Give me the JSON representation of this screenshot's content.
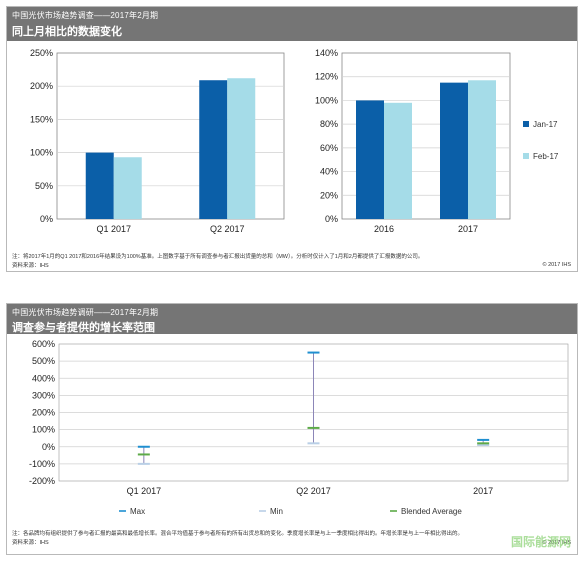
{
  "panel1": {
    "supertitle": "中国光伏市场趋势调查——2017年2月期",
    "title": "同上月相比的数据变化",
    "footnote_line1": "注：将2017年1月的Q1 2017和2016年结果设为100%基准。上图数字基于所有调查参与者汇报出货量的总和（MW）。分析时仅计入了1月和2月都提供了汇报数据的公司。",
    "footnote_line2": "资料来源：IHS",
    "copyright": "© 2017 IHS"
  },
  "panel2": {
    "supertitle": "中国光伏市场趋势调研——2017年2月期",
    "title": "调查参与者提供的增长率范围",
    "footnote_line1": "注：各品牌均有组织提供了参与者汇报的最高和最低增长率。混合平均值基于参与者所有的所有出货总和的变化。季度增长率是与上一季度相比得出的。年增长率是与上一年相比得出的。",
    "footnote_line2": "资料来源：IHS",
    "copyright": "© 2017 IHS"
  },
  "watermark": "国际能源网",
  "colors": {
    "jan": "#0b5fa8",
    "feb": "#a5dce8",
    "max": "#1f8fd0",
    "min": "#b9cfe6",
    "blended": "#5daa48",
    "range_line": "#8c86b8",
    "grid": "#d0d0d0"
  },
  "chart_data": [
    {
      "type": "bar",
      "categories": [
        "Q1 2017",
        "Q2 2017"
      ],
      "series": [
        {
          "name": "Jan-17",
          "values": [
            100,
            209
          ]
        },
        {
          "name": "Feb-17",
          "values": [
            93,
            212
          ]
        }
      ],
      "ylim": [
        0,
        250
      ],
      "yticks": [
        0,
        50,
        100,
        150,
        200,
        250
      ],
      "ytick_suffix": "%",
      "grid": true
    },
    {
      "type": "bar",
      "categories": [
        "2016",
        "2017"
      ],
      "series": [
        {
          "name": "Jan-17",
          "values": [
            100,
            115
          ]
        },
        {
          "name": "Feb-17",
          "values": [
            98,
            117
          ]
        }
      ],
      "ylim": [
        0,
        140
      ],
      "yticks": [
        0,
        20,
        40,
        60,
        80,
        100,
        120,
        140
      ],
      "ytick_suffix": "%",
      "grid": true,
      "legend": [
        "Jan-17",
        "Feb-17"
      ],
      "legend_position": "right"
    },
    {
      "type": "scatter",
      "categories": [
        "Q1 2017",
        "Q2 2017",
        "2017"
      ],
      "series": [
        {
          "name": "Max",
          "values": [
            0,
            550,
            40
          ]
        },
        {
          "name": "Min",
          "values": [
            -100,
            20,
            10
          ]
        },
        {
          "name": "Blended Average",
          "values": [
            -45,
            110,
            20
          ]
        }
      ],
      "ylim": [
        -200,
        600
      ],
      "yticks": [
        -200,
        -100,
        0,
        100,
        200,
        300,
        400,
        500,
        600
      ],
      "ytick_suffix": "%",
      "grid": true,
      "legend": [
        "Max",
        "Min",
        "Blended Average"
      ],
      "legend_position": "bottom"
    }
  ]
}
